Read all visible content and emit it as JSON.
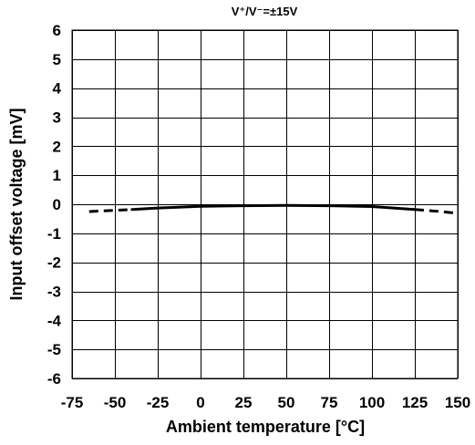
{
  "chart_data": {
    "type": "line",
    "title": "V⁺/V⁻=±15V",
    "xlabel": "Ambient temperature [°C]",
    "ylabel": "Input offset voltage [mV]",
    "xlim": [
      -75,
      150
    ],
    "ylim": [
      -6,
      6
    ],
    "xticks": [
      -75,
      -50,
      -25,
      0,
      25,
      50,
      75,
      100,
      125,
      150
    ],
    "yticks": [
      6,
      5,
      4,
      3,
      2,
      1,
      0,
      -1,
      -2,
      -3,
      -4,
      -5,
      -6
    ],
    "xtick_labels": [
      "-75",
      "-50",
      "-25",
      "0",
      "25",
      "50",
      "75",
      "100",
      "125",
      "150"
    ],
    "ytick_labels": [
      "6",
      "5",
      "4",
      "3",
      "2",
      "1",
      "0",
      "-1",
      "-2",
      "-3",
      "-4",
      "-5",
      "-6"
    ],
    "grid": true,
    "series": [
      {
        "style": "solid",
        "color": "#000000",
        "x": [
          -40,
          -25,
          0,
          25,
          50,
          75,
          100,
          125
        ],
        "y": [
          -0.18,
          -0.13,
          -0.07,
          -0.05,
          -0.04,
          -0.05,
          -0.08,
          -0.18
        ]
      },
      {
        "style": "dashed",
        "color": "#000000",
        "x": [
          -65,
          -50,
          -40
        ],
        "y": [
          -0.25,
          -0.21,
          -0.18
        ]
      },
      {
        "style": "dashed",
        "color": "#000000",
        "x": [
          125,
          140,
          150
        ],
        "y": [
          -0.18,
          -0.25,
          -0.31
        ]
      }
    ]
  }
}
